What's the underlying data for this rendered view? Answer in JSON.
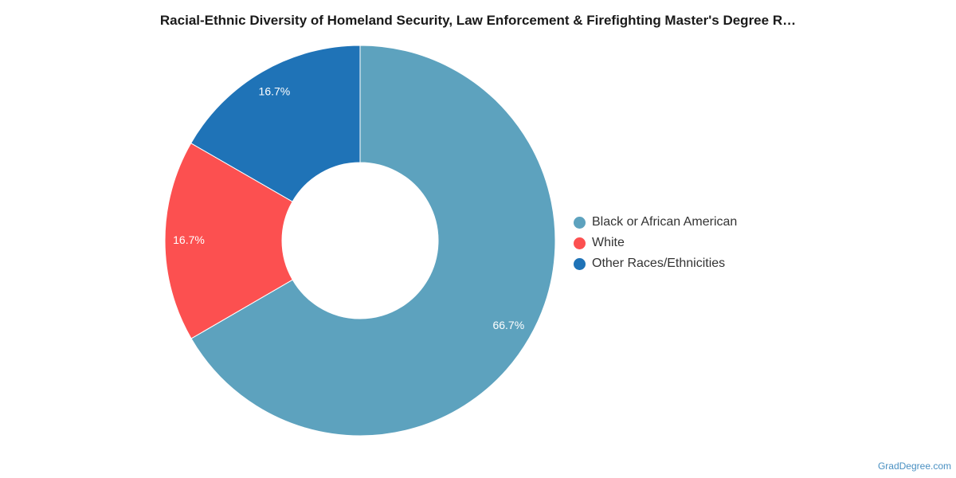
{
  "chart_data": {
    "type": "pie",
    "title": "Racial-Ethnic Diversity of Homeland Security, Law Enforcement & Firefighting Master's Degree R…",
    "donut": true,
    "legend_position": "right",
    "slices": [
      {
        "name": "Black or African American",
        "value": 66.7,
        "label": "66.7%",
        "color": "#5da2be"
      },
      {
        "name": "White",
        "value": 16.7,
        "label": "16.7%",
        "color": "#fc5050"
      },
      {
        "name": "Other Races/Ethnicities",
        "value": 16.7,
        "label": "16.7%",
        "color": "#1f73b7"
      }
    ]
  },
  "watermark": "GradDegree.com"
}
